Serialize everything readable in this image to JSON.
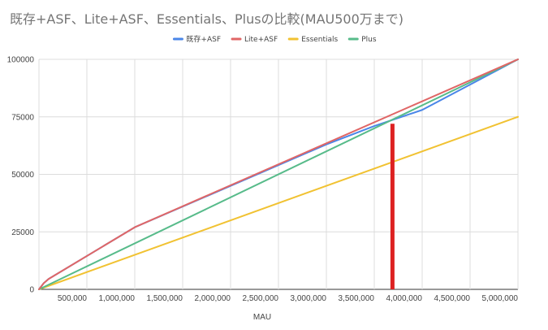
{
  "chart_data": {
    "type": "line",
    "title": "既存+ASF、Lite+ASF、Essentials、Plusの比較(MAU500万まで)",
    "xlabel": "MAU",
    "ylabel": "",
    "xlim": [
      0,
      5000000
    ],
    "ylim": [
      0,
      100000
    ],
    "x_ticks": [
      500000,
      1000000,
      1500000,
      2000000,
      2500000,
      3000000,
      3500000,
      4000000,
      4500000,
      5000000
    ],
    "x_tick_labels": [
      "500,000",
      "1,000,000",
      "1,500,000",
      "2,000,000",
      "2,500,000",
      "3,000,000",
      "3,500,000",
      "4,000,000",
      "4,500,000",
      "5,000,000"
    ],
    "y_ticks": [
      0,
      25000,
      50000,
      75000,
      100000
    ],
    "y_tick_labels": [
      "0",
      "25000",
      "50000",
      "75000",
      "100000"
    ],
    "grid": true,
    "legend_position": "top",
    "series": [
      {
        "name": "既存+ASF",
        "color": "#4a86e8",
        "points": [
          [
            0,
            0
          ],
          [
            50000,
            2700
          ],
          [
            100000,
            4500
          ],
          [
            1000000,
            27000
          ],
          [
            3000000,
            63000
          ],
          [
            3500000,
            71000
          ],
          [
            4000000,
            78000
          ],
          [
            5000000,
            100000
          ]
        ]
      },
      {
        "name": "Lite+ASF",
        "color": "#e06666",
        "points": [
          [
            0,
            0
          ],
          [
            50000,
            2700
          ],
          [
            100000,
            4500
          ],
          [
            1000000,
            27000
          ],
          [
            5000000,
            100000
          ]
        ]
      },
      {
        "name": "Essentials",
        "color": "#f1c232",
        "points": [
          [
            0,
            0
          ],
          [
            5000000,
            75000
          ]
        ]
      },
      {
        "name": "Plus",
        "color": "#57bb8a",
        "points": [
          [
            0,
            0
          ],
          [
            5000000,
            100000
          ]
        ]
      }
    ],
    "annotations": [
      {
        "type": "vertical-marker",
        "color": "#dd2222",
        "x": 3690000,
        "y_from": 0,
        "y_to": 72000
      }
    ]
  }
}
